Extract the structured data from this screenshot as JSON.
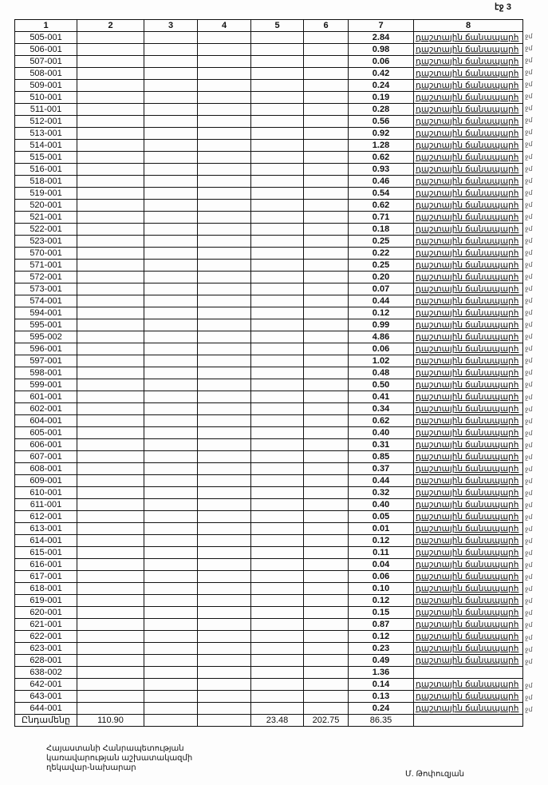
{
  "page_label": "էջ 3",
  "table": {
    "headers": [
      "1",
      "2",
      "3",
      "4",
      "5",
      "6",
      "7",
      "8"
    ],
    "land_type": "դաշտային ճանապարհ",
    "margin_suffix": "ջմ",
    "rows": [
      {
        "id": "505-001",
        "area": "2.84",
        "type": true
      },
      {
        "id": "506-001",
        "area": "0.98",
        "type": true
      },
      {
        "id": "507-001",
        "area": "0.06",
        "type": true
      },
      {
        "id": "508-001",
        "area": "0.42",
        "type": true
      },
      {
        "id": "509-001",
        "area": "0.24",
        "type": true
      },
      {
        "id": "510-001",
        "area": "0.19",
        "type": true
      },
      {
        "id": "511-001",
        "area": "0.28",
        "type": true
      },
      {
        "id": "512-001",
        "area": "0.56",
        "type": true
      },
      {
        "id": "513-001",
        "area": "0.92",
        "type": true
      },
      {
        "id": "514-001",
        "area": "1.28",
        "type": true
      },
      {
        "id": "515-001",
        "area": "0.62",
        "type": true
      },
      {
        "id": "516-001",
        "area": "0.93",
        "type": true
      },
      {
        "id": "518-001",
        "area": "0.46",
        "type": true
      },
      {
        "id": "519-001",
        "area": "0.54",
        "type": true
      },
      {
        "id": "520-001",
        "area": "0.62",
        "type": true
      },
      {
        "id": "521-001",
        "area": "0.71",
        "type": true
      },
      {
        "id": "522-001",
        "area": "0.18",
        "type": true
      },
      {
        "id": "523-001",
        "area": "0.25",
        "type": true
      },
      {
        "id": "570-001",
        "area": "0.22",
        "type": true
      },
      {
        "id": "571-001",
        "area": "0.25",
        "type": true
      },
      {
        "id": "572-001",
        "area": "0.20",
        "type": true
      },
      {
        "id": "573-001",
        "area": "0.07",
        "type": true
      },
      {
        "id": "574-001",
        "area": "0.44",
        "type": true
      },
      {
        "id": "594-001",
        "area": "0.12",
        "type": true
      },
      {
        "id": "595-001",
        "area": "0.99",
        "type": true
      },
      {
        "id": "595-002",
        "area": "4.86",
        "type": true
      },
      {
        "id": "596-001",
        "area": "0.06",
        "type": true
      },
      {
        "id": "597-001",
        "area": "1.02",
        "type": true
      },
      {
        "id": "598-001",
        "area": "0.48",
        "type": true
      },
      {
        "id": "599-001",
        "area": "0.50",
        "type": true
      },
      {
        "id": "601-001",
        "area": "0.41",
        "type": true
      },
      {
        "id": "602-001",
        "area": "0.34",
        "type": true
      },
      {
        "id": "604-001",
        "area": "0.62",
        "type": true
      },
      {
        "id": "605-001",
        "area": "0.40",
        "type": true
      },
      {
        "id": "606-001",
        "area": "0.31",
        "type": true
      },
      {
        "id": "607-001",
        "area": "0.85",
        "type": true
      },
      {
        "id": "608-001",
        "area": "0.37",
        "type": true
      },
      {
        "id": "609-001",
        "area": "0.44",
        "type": true
      },
      {
        "id": "610-001",
        "area": "0.32",
        "type": true
      },
      {
        "id": "611-001",
        "area": "0.40",
        "type": true
      },
      {
        "id": "612-001",
        "area": "0.05",
        "type": true
      },
      {
        "id": "613-001",
        "area": "0.01",
        "type": true
      },
      {
        "id": "614-001",
        "area": "0.12",
        "type": true
      },
      {
        "id": "615-001",
        "area": "0.11",
        "type": true
      },
      {
        "id": "616-001",
        "area": "0.04",
        "type": true
      },
      {
        "id": "617-001",
        "area": "0.06",
        "type": true
      },
      {
        "id": "618-001",
        "area": "0.10",
        "type": true
      },
      {
        "id": "619-001",
        "area": "0.12",
        "type": true
      },
      {
        "id": "620-001",
        "area": "0.15",
        "type": true
      },
      {
        "id": "621-001",
        "area": "0.87",
        "type": true
      },
      {
        "id": "622-001",
        "area": "0.12",
        "type": true
      },
      {
        "id": "623-001",
        "area": "0.23",
        "type": true
      },
      {
        "id": "628-001",
        "area": "0.49",
        "type": true
      },
      {
        "id": "638-002",
        "area": "1.36",
        "type": false
      },
      {
        "id": "642-001",
        "area": "0.14",
        "type": true
      },
      {
        "id": "643-001",
        "area": "0.13",
        "type": true
      },
      {
        "id": "644-001",
        "area": "0.24",
        "type": true
      }
    ],
    "total": {
      "label": "Ընդամենը",
      "col2": "110.90",
      "col3": "",
      "col4": "",
      "col5": "23.48",
      "col6": "202.75",
      "col7": "86.35",
      "col8": ""
    }
  },
  "footer": {
    "left_lines": [
      "Հայաստանի Հանրապետության",
      "կառավարության աշխատակազմի",
      "ղեկավար-նախարար"
    ],
    "signatory": "Մ. Թոփուզյան"
  }
}
